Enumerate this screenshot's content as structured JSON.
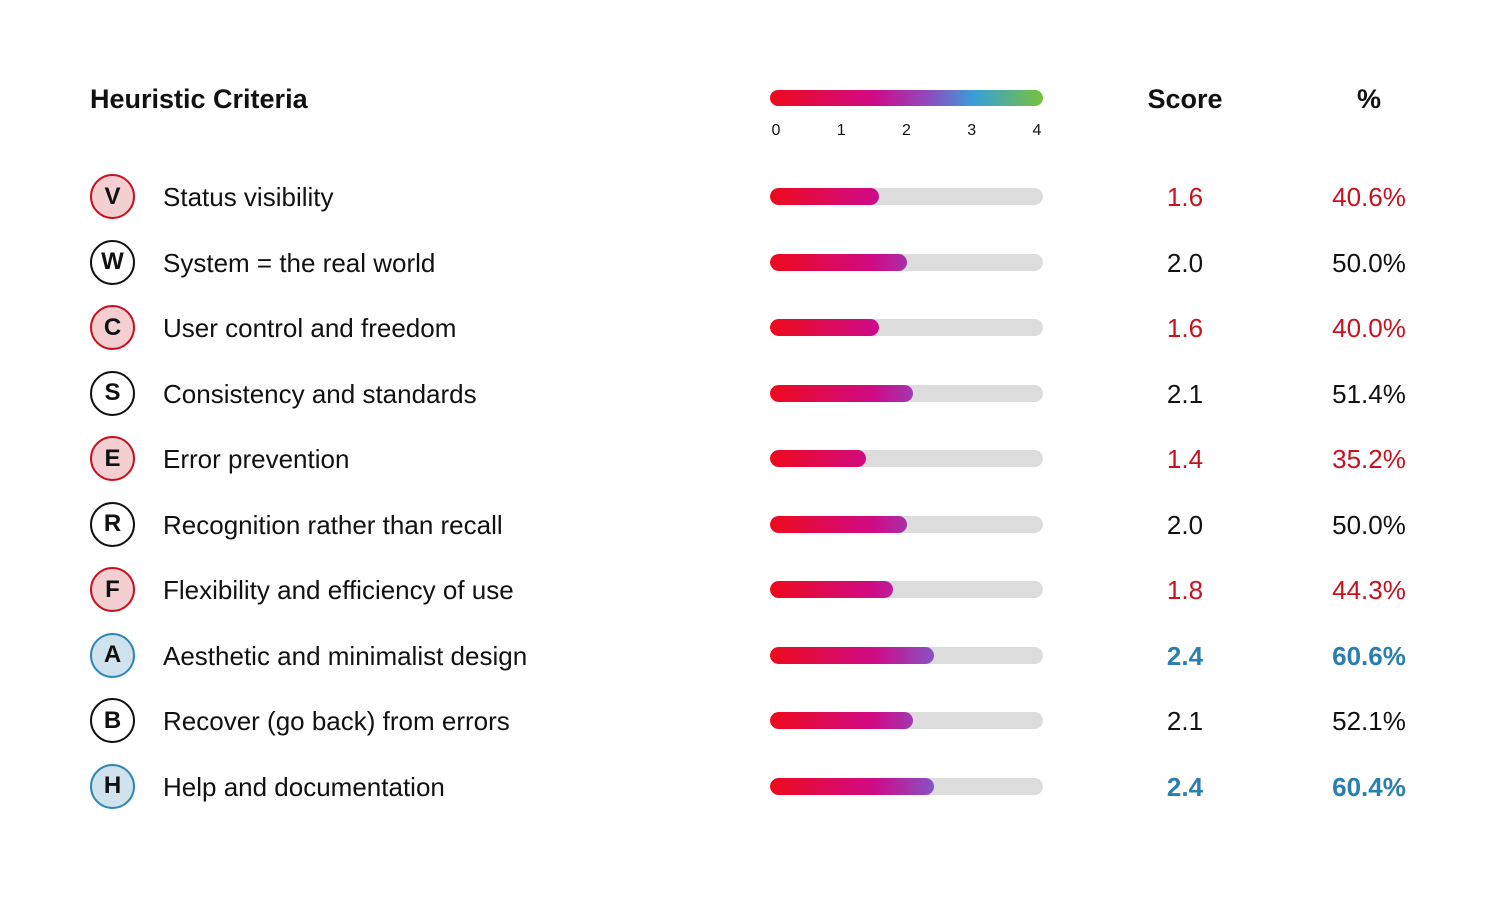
{
  "header": {
    "title": "Heuristic Criteria",
    "score_label": "Score",
    "pct_label": "%"
  },
  "legend": {
    "ticks": [
      "0",
      "1",
      "2",
      "3",
      "4"
    ]
  },
  "colors": {
    "red": "#c8111f",
    "blue": "#2a7fb0",
    "neutral": "#111111",
    "track": "#dcdcdc"
  },
  "chart_data": {
    "type": "bar",
    "xlim": [
      0,
      4
    ],
    "categories": [
      "Status visibility",
      "System = the real world",
      "User control and freedom",
      "Consistency and standards",
      "Error prevention",
      "Recognition rather than recall",
      "Flexibility and efficiency of use",
      "Aesthetic and minimalist design",
      "Recover (go back) from errors",
      "Help and documentation"
    ],
    "rows": [
      {
        "letter": "V",
        "label": "Status visibility",
        "value": 1.6,
        "score": "1.6",
        "percent": "40.6%",
        "status": "red"
      },
      {
        "letter": "W",
        "label": "System = the real world",
        "value": 2.0,
        "score": "2.0",
        "percent": "50.0%",
        "status": "neutral"
      },
      {
        "letter": "C",
        "label": "User control and freedom",
        "value": 1.6,
        "score": "1.6",
        "percent": "40.0%",
        "status": "red"
      },
      {
        "letter": "S",
        "label": "Consistency and standards",
        "value": 2.1,
        "score": "2.1",
        "percent": "51.4%",
        "status": "neutral"
      },
      {
        "letter": "E",
        "label": "Error prevention",
        "value": 1.4,
        "score": "1.4",
        "percent": "35.2%",
        "status": "red"
      },
      {
        "letter": "R",
        "label": "Recognition rather than recall",
        "value": 2.0,
        "score": "2.0",
        "percent": "50.0%",
        "status": "neutral"
      },
      {
        "letter": "F",
        "label": "Flexibility and efficiency of use",
        "value": 1.8,
        "score": "1.8",
        "percent": "44.3%",
        "status": "red"
      },
      {
        "letter": "A",
        "label": "Aesthetic and minimalist design",
        "value": 2.4,
        "score": "2.4",
        "percent": "60.6%",
        "status": "blue"
      },
      {
        "letter": "B",
        "label": "Recover (go back) from errors",
        "value": 2.1,
        "score": "2.1",
        "percent": "52.1%",
        "status": "neutral"
      },
      {
        "letter": "H",
        "label": "Help and documentation",
        "value": 2.4,
        "score": "2.4",
        "percent": "60.4%",
        "status": "blue"
      }
    ]
  }
}
